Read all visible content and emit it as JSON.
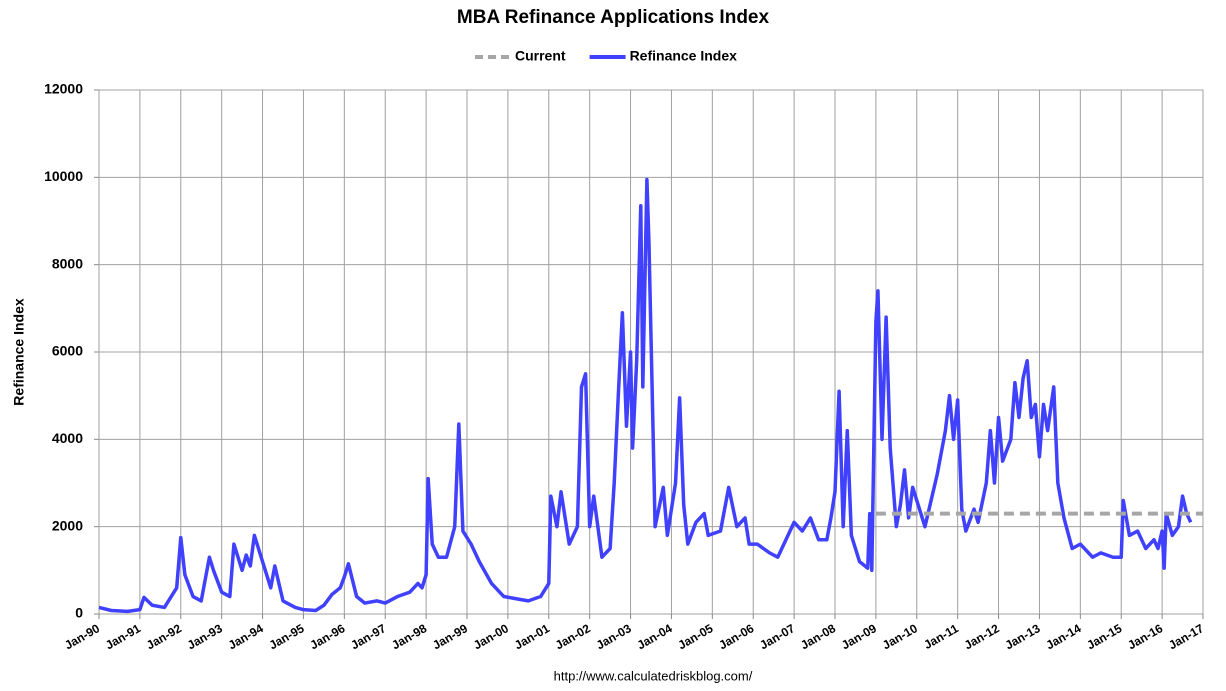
{
  "chart_data": {
    "type": "line",
    "title": "MBA Refinance Applications Index",
    "y_label": "Refinance Index",
    "source": "http://www.calculatedriskblog.com/",
    "legend": "top",
    "grid": true,
    "xlim": [
      1990,
      2017
    ],
    "xticks": [
      {
        "value": 1990,
        "label": "Jan-90"
      },
      {
        "value": 1991,
        "label": "Jan-91"
      },
      {
        "value": 1992,
        "label": "Jan-92"
      },
      {
        "value": 1993,
        "label": "Jan-93"
      },
      {
        "value": 1994,
        "label": "Jan-94"
      },
      {
        "value": 1995,
        "label": "Jan-95"
      },
      {
        "value": 1996,
        "label": "Jan-96"
      },
      {
        "value": 1997,
        "label": "Jan-97"
      },
      {
        "value": 1998,
        "label": "Jan-98"
      },
      {
        "value": 1999,
        "label": "Jan-99"
      },
      {
        "value": 2000,
        "label": "Jan-00"
      },
      {
        "value": 2001,
        "label": "Jan-01"
      },
      {
        "value": 2002,
        "label": "Jan-02"
      },
      {
        "value": 2003,
        "label": "Jan-03"
      },
      {
        "value": 2004,
        "label": "Jan-04"
      },
      {
        "value": 2005,
        "label": "Jan-05"
      },
      {
        "value": 2006,
        "label": "Jan-06"
      },
      {
        "value": 2007,
        "label": "Jan-07"
      },
      {
        "value": 2008,
        "label": "Jan-08"
      },
      {
        "value": 2009,
        "label": "Jan-09"
      },
      {
        "value": 2010,
        "label": "Jan-10"
      },
      {
        "value": 2011,
        "label": "Jan-11"
      },
      {
        "value": 2012,
        "label": "Jan-12"
      },
      {
        "value": 2013,
        "label": "Jan-13"
      },
      {
        "value": 2014,
        "label": "Jan-14"
      },
      {
        "value": 2015,
        "label": "Jan-15"
      },
      {
        "value": 2016,
        "label": "Jan-16"
      },
      {
        "value": 2017,
        "label": "Jan-17"
      }
    ],
    "ylim": [
      0,
      12000
    ],
    "yticks": [
      0,
      2000,
      4000,
      6000,
      8000,
      10000,
      12000
    ],
    "series": [
      {
        "name": "Current",
        "color": "#a6a6a6",
        "dash": true,
        "x": [
          2009,
          2017
        ],
        "values": [
          2300,
          2300
        ]
      },
      {
        "name": "Refinance Index",
        "color": "#4040ff",
        "dash": false,
        "x": [
          1990,
          1990.3,
          1990.7,
          1991.0,
          1991.1,
          1991.3,
          1991.6,
          1991.9,
          1992.0,
          1992.1,
          1992.3,
          1992.5,
          1992.7,
          1992.8,
          1993.0,
          1993.2,
          1993.3,
          1993.5,
          1993.6,
          1993.7,
          1993.8,
          1994.0,
          1994.2,
          1994.3,
          1994.5,
          1994.8,
          1995.0,
          1995.3,
          1995.5,
          1995.7,
          1995.9,
          1996.0,
          1996.1,
          1996.3,
          1996.5,
          1996.8,
          1997.0,
          1997.3,
          1997.6,
          1997.8,
          1997.9,
          1998.0,
          1998.05,
          1998.15,
          1998.3,
          1998.5,
          1998.7,
          1998.8,
          1998.9,
          1999.1,
          1999.3,
          1999.6,
          1999.9,
          2000.2,
          2000.5,
          2000.8,
          2001.0,
          2001.05,
          2001.2,
          2001.3,
          2001.5,
          2001.7,
          2001.8,
          2001.9,
          2002.0,
          2002.1,
          2002.3,
          2002.5,
          2002.6,
          2002.7,
          2002.8,
          2002.9,
          2003.0,
          2003.05,
          2003.15,
          2003.25,
          2003.3,
          2003.4,
          2003.45,
          2003.55,
          2003.6,
          2003.8,
          2003.9,
          2004.1,
          2004.2,
          2004.3,
          2004.4,
          2004.6,
          2004.8,
          2004.9,
          2005.2,
          2005.4,
          2005.6,
          2005.8,
          2005.9,
          2006.1,
          2006.4,
          2006.6,
          2006.8,
          2007.0,
          2007.2,
          2007.4,
          2007.6,
          2007.8,
          2007.9,
          2008.0,
          2008.1,
          2008.2,
          2008.3,
          2008.4,
          2008.6,
          2008.8,
          2008.85,
          2008.9,
          2009.0,
          2009.05,
          2009.15,
          2009.25,
          2009.35,
          2009.5,
          2009.6,
          2009.7,
          2009.8,
          2009.9,
          2010.0,
          2010.2,
          2010.5,
          2010.7,
          2010.8,
          2010.9,
          2011.0,
          2011.1,
          2011.2,
          2011.4,
          2011.5,
          2011.7,
          2011.8,
          2011.9,
          2012.0,
          2012.1,
          2012.3,
          2012.4,
          2012.5,
          2012.6,
          2012.7,
          2012.8,
          2012.9,
          2013.0,
          2013.1,
          2013.2,
          2013.35,
          2013.45,
          2013.6,
          2013.8,
          2014.0,
          2014.3,
          2014.5,
          2014.8,
          2015.0,
          2015.05,
          2015.2,
          2015.4,
          2015.6,
          2015.8,
          2015.9,
          2016.0,
          2016.05,
          2016.1,
          2016.25,
          2016.4,
          2016.5,
          2016.6,
          2016.7
        ],
        "values": [
          150,
          80,
          60,
          100,
          380,
          200,
          150,
          600,
          1750,
          900,
          400,
          300,
          1300,
          1000,
          500,
          400,
          1600,
          1000,
          1350,
          1100,
          1800,
          1200,
          600,
          1100,
          300,
          150,
          100,
          80,
          200,
          450,
          600,
          850,
          1150,
          400,
          250,
          300,
          250,
          400,
          500,
          700,
          600,
          900,
          3100,
          1600,
          1300,
          1300,
          2000,
          4350,
          1900,
          1600,
          1200,
          700,
          400,
          350,
          300,
          400,
          700,
          2700,
          2000,
          2800,
          1600,
          2000,
          5200,
          5500,
          2000,
          2700,
          1300,
          1500,
          3000,
          5000,
          6900,
          4300,
          6000,
          3800,
          5800,
          9350,
          5200,
          9950,
          8500,
          4200,
          2000,
          2900,
          1800,
          3000,
          4950,
          2500,
          1600,
          2100,
          2300,
          1800,
          1900,
          2900,
          2000,
          2200,
          1600,
          1600,
          1400,
          1300,
          1700,
          2100,
          1900,
          2200,
          1700,
          1700,
          2200,
          2800,
          5100,
          2000,
          4200,
          1800,
          1200,
          1050,
          2300,
          1000,
          6700,
          7400,
          4000,
          6800,
          3800,
          2000,
          2500,
          3300,
          2200,
          2900,
          2600,
          2000,
          3200,
          4200,
          5000,
          4000,
          4900,
          2400,
          1900,
          2400,
          2100,
          3000,
          4200,
          3000,
          4500,
          3500,
          4000,
          5300,
          4500,
          5400,
          5800,
          4500,
          4800,
          3600,
          4800,
          4200,
          5200,
          3000,
          2200,
          1500,
          1600,
          1300,
          1400,
          1300,
          1300,
          2600,
          1800,
          1900,
          1500,
          1700,
          1500,
          1900,
          1050,
          2300,
          1800,
          2000,
          2700,
          2300,
          2100
        ]
      }
    ]
  }
}
